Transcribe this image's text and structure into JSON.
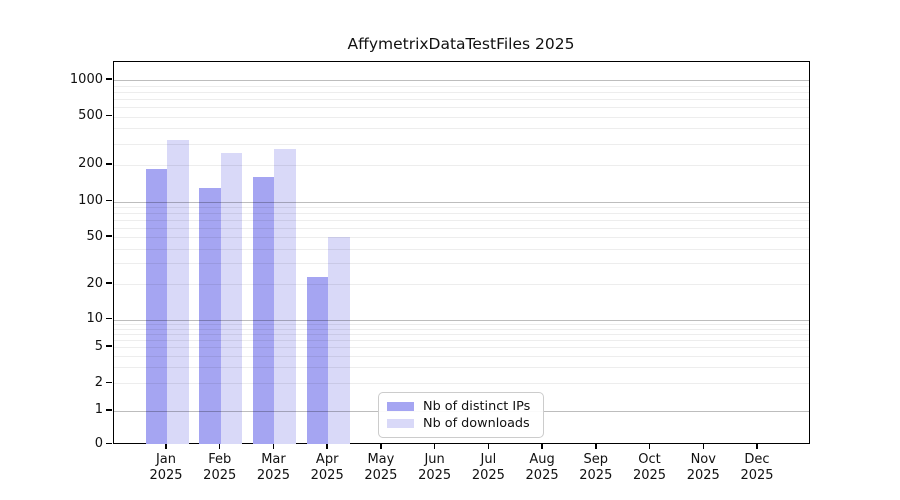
{
  "title": "AffymetrixDataTestFiles 2025",
  "chart_data": {
    "type": "bar",
    "title": "AffymetrixDataTestFiles 2025",
    "xlabel": "",
    "ylabel": "",
    "categories": [
      "Jan 2025",
      "Feb 2025",
      "Mar 2025",
      "Apr 2025",
      "May 2025",
      "Jun 2025",
      "Jul 2025",
      "Aug 2025",
      "Sep 2025",
      "Oct 2025",
      "Nov 2025",
      "Dec 2025"
    ],
    "series": [
      {
        "name": "Nb of distinct IPs",
        "color": "#a5a5f2",
        "values": [
          185,
          130,
          158,
          23,
          null,
          null,
          null,
          null,
          null,
          null,
          null,
          null
        ]
      },
      {
        "name": "Nb of downloads",
        "color": "#d9d9f8",
        "values": [
          320,
          250,
          270,
          50,
          null,
          null,
          null,
          null,
          null,
          null,
          null,
          null
        ]
      }
    ],
    "yscale": "log (linear below 1, 0 at baseline)",
    "y_ticks": [
      1000,
      500,
      200,
      100,
      50,
      20,
      10,
      5,
      2,
      1,
      0
    ],
    "ylim": [
      0,
      1400
    ],
    "grid": "horizontal, faint minor lines at 2-9 per decade, darker major lines at powers of 10",
    "legend": {
      "position": "lower center",
      "items": [
        "Nb of distinct IPs",
        "Nb of downloads"
      ]
    }
  },
  "colors": {
    "distinct_ips_bar": "#a5a5f2",
    "downloads_bar": "#d9d9f8",
    "axis": "#000000",
    "grid_major": "rgba(0,0,0,0.26)",
    "grid_minor": "rgba(0,0,0,0.07)",
    "background": "#ffffff"
  }
}
